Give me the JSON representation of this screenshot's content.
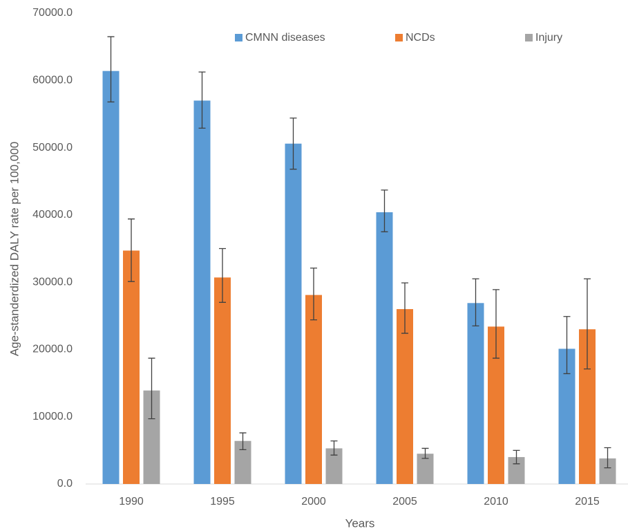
{
  "chart_data": {
    "type": "bar",
    "x_label": "Years",
    "y_label": "Age-standerdized DALY rate per 100,000",
    "categories": [
      "1990",
      "1995",
      "2000",
      "2005",
      "2010",
      "2015"
    ],
    "series": [
      {
        "name": "CMNN diseases",
        "color": "#5b9bd5",
        "values": [
          61400,
          57000,
          50600,
          40400,
          26900,
          20100
        ],
        "lower": [
          56800,
          52900,
          46800,
          37500,
          23500,
          16400
        ],
        "upper": [
          66500,
          61250,
          54400,
          43700,
          30500,
          24900
        ]
      },
      {
        "name": "NCDs",
        "color": "#ed7d31",
        "values": [
          34700,
          30700,
          28100,
          26000,
          23400,
          23000
        ],
        "lower": [
          30100,
          27000,
          24400,
          22400,
          18700,
          17100
        ],
        "upper": [
          39400,
          35000,
          32100,
          29900,
          28900,
          30500
        ]
      },
      {
        "name": "Injury",
        "color": "#a5a5a5",
        "values": [
          13900,
          6400,
          5300,
          4500,
          4000,
          3800
        ],
        "lower": [
          9700,
          5100,
          4300,
          3800,
          3000,
          2400
        ],
        "upper": [
          18700,
          7600,
          6400,
          5300,
          5000,
          5400
        ]
      }
    ],
    "ylim": [
      0,
      70000
    ],
    "yticks": [
      {
        "value": 0,
        "label": "0.0"
      },
      {
        "value": 10000,
        "label": "10000.0"
      },
      {
        "value": 20000,
        "label": "20000.0"
      },
      {
        "value": 30000,
        "label": "30000.0"
      },
      {
        "value": 40000,
        "label": "40000.0"
      },
      {
        "value": 50000,
        "label": "50000.0"
      },
      {
        "value": 60000,
        "label": "60000.0"
      },
      {
        "value": 70000,
        "label": "70000.0"
      }
    ],
    "grid": false,
    "legend": "top"
  }
}
